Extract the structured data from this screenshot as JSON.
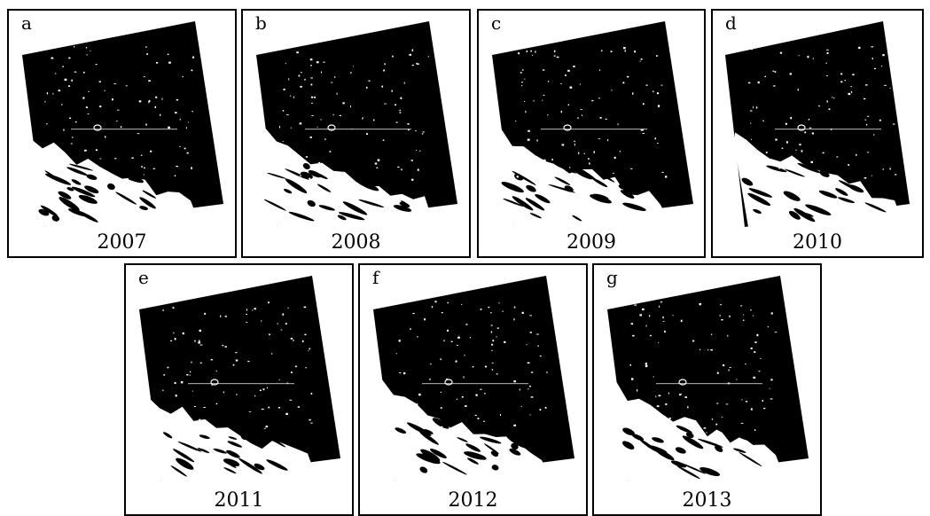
{
  "panels": [
    {
      "letter": "a",
      "year": "2007",
      "shore": 0.55
    },
    {
      "letter": "b",
      "year": "2008",
      "shore": 0.55
    },
    {
      "letter": "c",
      "year": "2009",
      "shore": 0.65
    },
    {
      "letter": "d",
      "year": "2010",
      "shore": 0.62
    },
    {
      "letter": "e",
      "year": "2011",
      "shore": 0.35
    },
    {
      "letter": "f",
      "year": "2012",
      "shore": 0.6
    },
    {
      "letter": "g",
      "year": "2013",
      "shore": 0.65
    }
  ]
}
